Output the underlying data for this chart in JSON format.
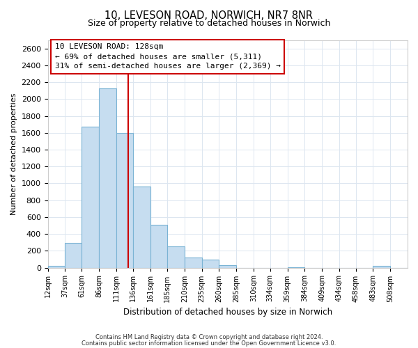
{
  "title1": "10, LEVESON ROAD, NORWICH, NR7 8NR",
  "title2": "Size of property relative to detached houses in Norwich",
  "xlabel": "Distribution of detached houses by size in Norwich",
  "ylabel": "Number of detached properties",
  "bin_labels": [
    "12sqm",
    "37sqm",
    "61sqm",
    "86sqm",
    "111sqm",
    "136sqm",
    "161sqm",
    "185sqm",
    "210sqm",
    "235sqm",
    "260sqm",
    "285sqm",
    "310sqm",
    "334sqm",
    "359sqm",
    "384sqm",
    "409sqm",
    "434sqm",
    "458sqm",
    "483sqm",
    "508sqm"
  ],
  "bar_heights": [
    20,
    295,
    1675,
    2130,
    1600,
    960,
    510,
    255,
    120,
    95,
    30,
    0,
    0,
    0,
    5,
    0,
    0,
    0,
    0,
    20,
    0
  ],
  "bar_color": "#c6ddf0",
  "bar_edge_color": "#7ab3d4",
  "property_line_x": 128,
  "bin_edges": [
    12,
    37,
    61,
    86,
    111,
    136,
    161,
    185,
    210,
    235,
    260,
    285,
    310,
    334,
    359,
    384,
    409,
    434,
    458,
    483,
    508,
    533
  ],
  "ylim": [
    0,
    2700
  ],
  "yticks": [
    0,
    200,
    400,
    600,
    800,
    1000,
    1200,
    1400,
    1600,
    1800,
    2000,
    2200,
    2400,
    2600
  ],
  "annotation_line1": "10 LEVESON ROAD: 128sqm",
  "annotation_line2": "← 69% of detached houses are smaller (5,311)",
  "annotation_line3": "31% of semi-detached houses are larger (2,369) →",
  "footer1": "Contains HM Land Registry data © Crown copyright and database right 2024.",
  "footer2": "Contains public sector information licensed under the Open Government Licence v3.0.",
  "red_line_color": "#cc0000",
  "annotation_box_bg": "#ffffff",
  "annotation_box_edge": "#cc0000",
  "background_color": "#ffffff",
  "grid_color": "#dce6f0"
}
